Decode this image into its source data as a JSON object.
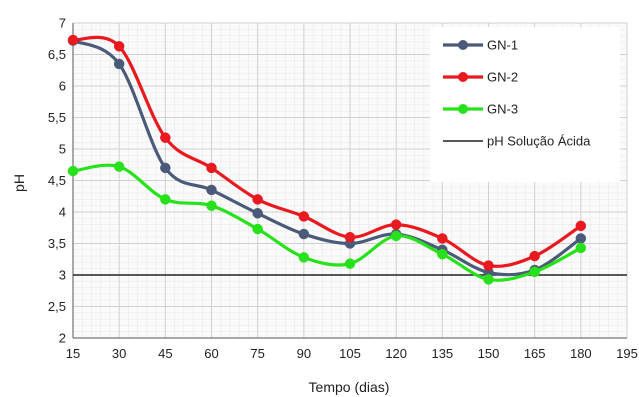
{
  "chart_data": {
    "type": "line",
    "xlabel": "Tempo  (dias)",
    "ylabel": "pH",
    "xlim": [
      15,
      195
    ],
    "ylim": [
      2,
      7
    ],
    "x_ticks": [
      15,
      30,
      45,
      60,
      75,
      90,
      105,
      120,
      135,
      150,
      165,
      180,
      195
    ],
    "y_ticks": [
      {
        "value": 2,
        "label": "2"
      },
      {
        "value": 2.5,
        "label": "2,5"
      },
      {
        "value": 3,
        "label": "3"
      },
      {
        "value": 3.5,
        "label": "3,5"
      },
      {
        "value": 4,
        "label": "4"
      },
      {
        "value": 4.5,
        "label": "4,5"
      },
      {
        "value": 5,
        "label": "5"
      },
      {
        "value": 5.5,
        "label": "5,5"
      },
      {
        "value": 6,
        "label": "6"
      },
      {
        "value": 6.5,
        "label": "6,5"
      },
      {
        "value": 7,
        "label": "7"
      }
    ],
    "grid": true,
    "legend_position": "top-right",
    "x": [
      15,
      30,
      45,
      60,
      75,
      90,
      105,
      120,
      135,
      150,
      165,
      180
    ],
    "series": [
      {
        "name": "GN-1",
        "color": "#4a5a78",
        "values": [
          6.72,
          6.35,
          4.7,
          4.35,
          3.98,
          3.65,
          3.5,
          3.65,
          3.4,
          3.04,
          3.08,
          3.58
        ]
      },
      {
        "name": "GN-2",
        "color": "#e8191f",
        "values": [
          6.73,
          6.63,
          5.18,
          4.7,
          4.2,
          3.93,
          3.6,
          3.8,
          3.58,
          3.15,
          3.3,
          3.78
        ]
      },
      {
        "name": "GN-3",
        "color": "#27e21a",
        "values": [
          4.65,
          4.72,
          4.2,
          4.1,
          3.73,
          3.28,
          3.18,
          3.62,
          3.33,
          2.93,
          3.05,
          3.43
        ]
      }
    ],
    "reference_line": {
      "name": "pH Solução Ácida",
      "value": 3,
      "color": "#222222"
    }
  }
}
